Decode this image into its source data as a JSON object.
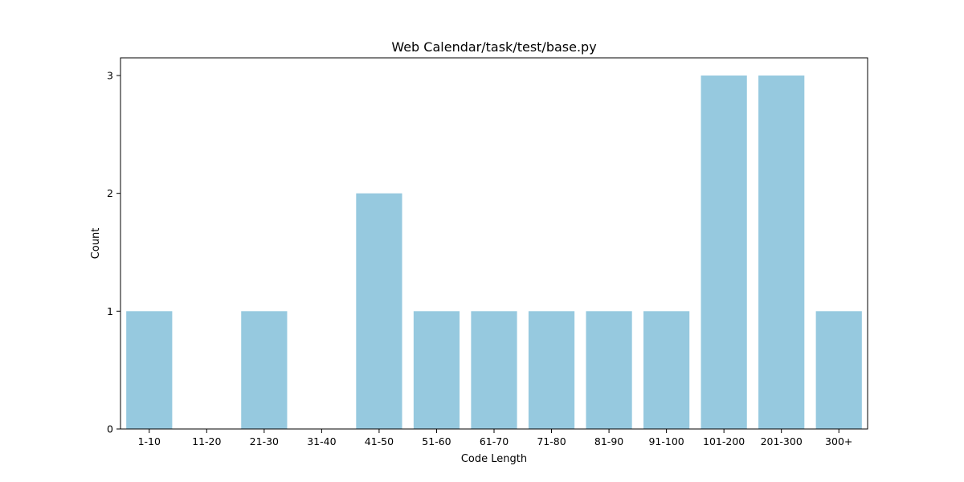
{
  "chart_data": {
    "type": "bar",
    "title": "Web Calendar/task/test/base.py",
    "xlabel": "Code Length",
    "ylabel": "Count",
    "categories": [
      "1-10",
      "11-20",
      "21-30",
      "31-40",
      "41-50",
      "51-60",
      "61-70",
      "71-80",
      "81-90",
      "91-100",
      "101-200",
      "201-300",
      "300+"
    ],
    "values": [
      1,
      0,
      1,
      0,
      2,
      1,
      1,
      1,
      1,
      1,
      3,
      3,
      1
    ],
    "yticks": [
      0,
      1,
      2,
      3
    ],
    "ylim": [
      0,
      3.15
    ],
    "bar_color": "#96c9df",
    "grid": false,
    "legend": "none"
  }
}
